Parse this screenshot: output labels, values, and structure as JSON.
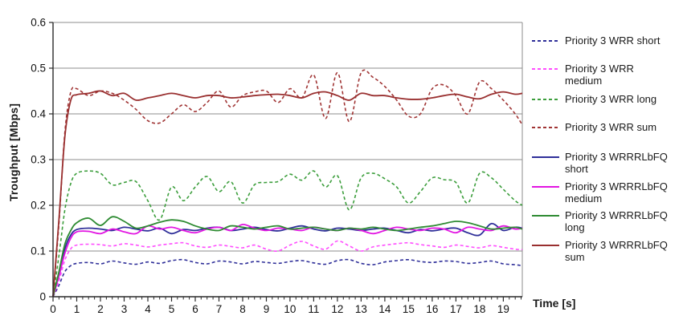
{
  "chart_data": {
    "type": "line",
    "title": "",
    "xlabel": "Time [s]",
    "ylabel": "Troughput [Mbps]",
    "xlim": [
      0,
      19.8
    ],
    "ylim": [
      0,
      0.6
    ],
    "x_ticks": [
      0,
      1,
      2,
      3,
      4,
      5,
      6,
      7,
      8,
      9,
      10,
      11,
      12,
      13,
      14,
      15,
      16,
      17,
      18,
      19
    ],
    "x_minor_tick_step": 0.25,
    "y_ticks": [
      0,
      0.1,
      0.2,
      0.3,
      0.4,
      0.5,
      0.6
    ],
    "grid": "horizontal gridlines every 0.1, plot box border, no vertical gridlines",
    "legend_position": "right",
    "colors": {
      "navy": "#2f2f99",
      "magenta_dashed": "#ff4dff",
      "magenta_solid": "#e215e2",
      "green_dashed": "#3c9e3c",
      "green_solid": "#2e8b32",
      "darkred_dashed": "#a03434",
      "darkred_solid": "#992f2f",
      "grid_gray": "#8c8c8c",
      "axis_dark": "#2a2a2a"
    },
    "x": [
      0,
      0.25,
      0.5,
      0.75,
      1,
      1.5,
      2,
      2.5,
      3,
      3.5,
      4,
      4.5,
      5,
      5.5,
      6,
      6.5,
      7,
      7.5,
      8,
      8.5,
      9,
      9.5,
      10,
      10.5,
      11,
      11.5,
      12,
      12.5,
      13,
      13.5,
      14,
      14.5,
      15,
      15.5,
      16,
      16.5,
      17,
      17.5,
      18,
      18.5,
      19,
      19.5,
      19.8
    ],
    "series": [
      {
        "name": "Priority 3 WRR short",
        "legend_label": "Priority 3 WRR short",
        "color": "#2f2f99",
        "style": "dashed",
        "values": [
          0,
          0.025,
          0.055,
          0.068,
          0.073,
          0.075,
          0.072,
          0.078,
          0.074,
          0.071,
          0.076,
          0.073,
          0.079,
          0.081,
          0.075,
          0.072,
          0.078,
          0.076,
          0.072,
          0.077,
          0.075,
          0.073,
          0.077,
          0.079,
          0.074,
          0.071,
          0.079,
          0.081,
          0.073,
          0.07,
          0.076,
          0.079,
          0.081,
          0.077,
          0.075,
          0.078,
          0.077,
          0.073,
          0.075,
          0.078,
          0.072,
          0.07,
          0.068
        ]
      },
      {
        "name": "Priority 3 WRR medium",
        "legend_label": "Priority 3 WRR\nmedium",
        "color": "#ff4dff",
        "style": "dashed",
        "values": [
          0,
          0.035,
          0.08,
          0.105,
          0.113,
          0.115,
          0.114,
          0.111,
          0.116,
          0.113,
          0.109,
          0.113,
          0.116,
          0.118,
          0.111,
          0.108,
          0.113,
          0.11,
          0.107,
          0.113,
          0.104,
          0.1,
          0.113,
          0.121,
          0.111,
          0.104,
          0.122,
          0.111,
          0.1,
          0.109,
          0.113,
          0.116,
          0.118,
          0.114,
          0.111,
          0.108,
          0.113,
          0.11,
          0.107,
          0.112,
          0.108,
          0.104,
          0.103
        ]
      },
      {
        "name": "Priority 3 WRR long",
        "legend_label": "Priority 3 WRR long",
        "color": "#3c9e3c",
        "style": "dashed",
        "values": [
          0,
          0.09,
          0.19,
          0.248,
          0.27,
          0.275,
          0.27,
          0.245,
          0.25,
          0.252,
          0.21,
          0.168,
          0.24,
          0.21,
          0.24,
          0.263,
          0.23,
          0.252,
          0.205,
          0.245,
          0.25,
          0.252,
          0.268,
          0.255,
          0.275,
          0.24,
          0.265,
          0.19,
          0.26,
          0.27,
          0.258,
          0.24,
          0.205,
          0.23,
          0.26,
          0.256,
          0.25,
          0.205,
          0.27,
          0.26,
          0.235,
          0.21,
          0.2
        ]
      },
      {
        "name": "Priority 3 WRR sum",
        "legend_label": "Priority 3 WRR sum",
        "color": "#a03434",
        "style": "dashed",
        "values": [
          0,
          0.16,
          0.36,
          0.448,
          0.455,
          0.44,
          0.45,
          0.445,
          0.43,
          0.41,
          0.385,
          0.38,
          0.4,
          0.42,
          0.405,
          0.425,
          0.45,
          0.415,
          0.44,
          0.448,
          0.45,
          0.425,
          0.455,
          0.435,
          0.485,
          0.39,
          0.49,
          0.383,
          0.49,
          0.48,
          0.46,
          0.43,
          0.395,
          0.4,
          0.455,
          0.463,
          0.44,
          0.4,
          0.47,
          0.455,
          0.43,
          0.4,
          0.376
        ]
      },
      {
        "name": "Priority 3 WRRRLbFQ short",
        "legend_label": "Priority 3 WRRRLbFQ\nshort",
        "color": "#2f2f99",
        "style": "solid",
        "values": [
          0,
          0.05,
          0.105,
          0.135,
          0.147,
          0.15,
          0.148,
          0.145,
          0.152,
          0.148,
          0.144,
          0.15,
          0.138,
          0.147,
          0.145,
          0.15,
          0.152,
          0.145,
          0.148,
          0.152,
          0.147,
          0.144,
          0.15,
          0.155,
          0.148,
          0.144,
          0.15,
          0.148,
          0.145,
          0.148,
          0.15,
          0.145,
          0.14,
          0.147,
          0.144,
          0.148,
          0.15,
          0.14,
          0.135,
          0.16,
          0.145,
          0.152,
          0.15
        ]
      },
      {
        "name": "Priority 3 WRRRLbFQ medium",
        "legend_label": "Priority 3 WRRRLbFQ\nmedium",
        "color": "#e215e2",
        "style": "solid",
        "values": [
          0,
          0.045,
          0.095,
          0.128,
          0.142,
          0.143,
          0.138,
          0.148,
          0.142,
          0.138,
          0.155,
          0.148,
          0.152,
          0.145,
          0.14,
          0.148,
          0.152,
          0.145,
          0.158,
          0.15,
          0.145,
          0.15,
          0.148,
          0.145,
          0.152,
          0.148,
          0.145,
          0.15,
          0.145,
          0.138,
          0.145,
          0.152,
          0.148,
          0.145,
          0.15,
          0.148,
          0.14,
          0.152,
          0.148,
          0.145,
          0.155,
          0.148,
          0.15
        ]
      },
      {
        "name": "Priority 3 WRRRLbFQ long",
        "legend_label": "Priority 3 WRRRLbFQ\nlong",
        "color": "#2e8b32",
        "style": "solid",
        "values": [
          0,
          0.055,
          0.115,
          0.145,
          0.162,
          0.172,
          0.156,
          0.175,
          0.165,
          0.15,
          0.155,
          0.163,
          0.168,
          0.165,
          0.155,
          0.148,
          0.145,
          0.155,
          0.152,
          0.148,
          0.152,
          0.155,
          0.148,
          0.15,
          0.152,
          0.148,
          0.145,
          0.15,
          0.148,
          0.152,
          0.148,
          0.145,
          0.148,
          0.152,
          0.155,
          0.16,
          0.165,
          0.162,
          0.155,
          0.148,
          0.15,
          0.152,
          0.148
        ]
      },
      {
        "name": "Priority 3 WRRRLbFQ sum",
        "legend_label": "Priority 3 WRRRLbFQ\nsum",
        "color": "#992f2f",
        "style": "solid",
        "values": [
          0,
          0.17,
          0.35,
          0.43,
          0.442,
          0.445,
          0.45,
          0.44,
          0.445,
          0.43,
          0.435,
          0.44,
          0.445,
          0.44,
          0.435,
          0.44,
          0.44,
          0.435,
          0.437,
          0.44,
          0.442,
          0.443,
          0.44,
          0.435,
          0.445,
          0.448,
          0.44,
          0.43,
          0.445,
          0.44,
          0.44,
          0.435,
          0.432,
          0.432,
          0.435,
          0.44,
          0.443,
          0.437,
          0.433,
          0.443,
          0.448,
          0.443,
          0.445
        ]
      }
    ]
  }
}
